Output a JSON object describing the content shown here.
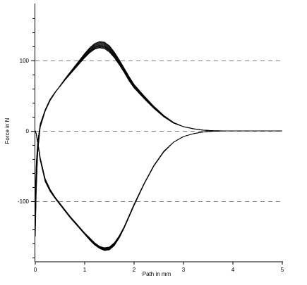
{
  "chart_data": {
    "type": "line",
    "title": "",
    "xlabel": "Path in mm",
    "ylabel": "Force in N",
    "xlim": [
      0,
      5
    ],
    "ylim": [
      -195,
      170
    ],
    "x_ticks": [
      0,
      1,
      2,
      3,
      4,
      5
    ],
    "x_tick_labels": [
      "0",
      "1",
      "2",
      "3",
      "4",
      "5"
    ],
    "y_ticks": [
      100,
      0,
      -100
    ],
    "y_tick_labels": [
      "100",
      "0",
      "-100"
    ],
    "reference_lines_y": [
      100,
      0,
      -100
    ],
    "reference_line_style": "dashed",
    "grid": false,
    "legend": "none",
    "line_color": "#000000",
    "series_count": 20,
    "series": [
      {
        "x": [
          0,
          0.02,
          0.05,
          0.1,
          0.2,
          0.3,
          0.4,
          0.5,
          0.6,
          0.7,
          0.8,
          0.9,
          1.0,
          1.1,
          1.2,
          1.3,
          1.4,
          1.5,
          1.6,
          1.7,
          1.8,
          1.9,
          2.0,
          2.2,
          2.4,
          2.6,
          2.8,
          3.0,
          3.2,
          3.4,
          3.6,
          3.8,
          4.0,
          5.0
        ],
        "y": [
          -90,
          -45,
          -15,
          10,
          30,
          45,
          55,
          63,
          72,
          80,
          88,
          96,
          104,
          111,
          116,
          118,
          117,
          112,
          104,
          94,
          83,
          71,
          61,
          46,
          32,
          20,
          11,
          6,
          3,
          1,
          0.3,
          0.1,
          0,
          0
        ]
      },
      {
        "x": [
          0,
          0.02,
          0.05,
          0.1,
          0.2,
          0.3,
          0.4,
          0.5,
          0.6,
          0.7,
          0.8,
          0.9,
          1.0,
          1.1,
          1.2,
          1.3,
          1.4,
          1.5,
          1.6,
          1.7,
          1.8,
          1.9,
          2.0,
          2.2,
          2.4,
          2.6,
          2.8,
          3.0,
          3.2,
          3.4,
          3.6,
          3.8,
          4.0,
          5.0
        ],
        "y": [
          -150,
          -85,
          -30,
          5,
          28,
          43,
          54,
          64,
          74,
          83,
          92,
          101,
          110,
          118,
          124,
          127,
          126,
          121,
          112,
          101,
          89,
          77,
          66,
          50,
          35,
          22,
          12,
          6,
          3,
          1,
          0.3,
          0.1,
          0,
          0
        ]
      },
      {
        "x": [
          0,
          0.02,
          0.05,
          0.1,
          0.2,
          0.3,
          0.4,
          0.5,
          0.6,
          0.7,
          0.8,
          0.9,
          1.0,
          1.1,
          1.2,
          1.3,
          1.4,
          1.5,
          1.6,
          1.7,
          1.8,
          1.9,
          2.0,
          2.2,
          2.4,
          2.6,
          2.8,
          3.0,
          3.2,
          3.4,
          3.6,
          3.8,
          4.0,
          5.0
        ],
        "y": [
          -120,
          -60,
          -20,
          8,
          29,
          44,
          55,
          64,
          73,
          82,
          90,
          98,
          106,
          113,
          118,
          121,
          120,
          115,
          106,
          96,
          85,
          73,
          63,
          47,
          33,
          21,
          11,
          6,
          3,
          1,
          0.3,
          0.1,
          0,
          0
        ]
      },
      {
        "x": [
          0,
          0.02,
          0.05,
          0.1,
          0.2,
          0.3,
          0.4,
          0.5,
          0.6,
          0.7,
          0.8,
          0.9,
          1.0,
          1.1,
          1.2,
          1.3,
          1.4,
          1.5,
          1.6,
          1.7,
          1.8,
          1.9,
          2.0,
          2.2,
          2.4,
          2.6,
          2.8,
          3.0,
          3.2,
          3.4,
          3.6,
          3.8,
          4.0,
          5.0
        ],
        "y": [
          0,
          -5,
          -18,
          -42,
          -72,
          -86,
          -96,
          -105,
          -114,
          -123,
          -131,
          -139,
          -147,
          -155,
          -162,
          -167,
          -170,
          -169,
          -163,
          -152,
          -138,
          -122,
          -106,
          -76,
          -50,
          -30,
          -16,
          -8,
          -4,
          -1.5,
          -0.5,
          -0.1,
          0,
          0
        ]
      },
      {
        "x": [
          0,
          0.02,
          0.05,
          0.1,
          0.2,
          0.3,
          0.4,
          0.5,
          0.6,
          0.7,
          0.8,
          0.9,
          1.0,
          1.1,
          1.2,
          1.3,
          1.4,
          1.5,
          1.6,
          1.7,
          1.8,
          1.9,
          2.0,
          2.2,
          2.4,
          2.6,
          2.8,
          3.0,
          3.2,
          3.4,
          3.6,
          3.8,
          4.0,
          5.0
        ],
        "y": [
          0,
          -4,
          -15,
          -38,
          -68,
          -83,
          -94,
          -103,
          -112,
          -121,
          -129,
          -137,
          -145,
          -152,
          -159,
          -164,
          -166,
          -165,
          -159,
          -149,
          -136,
          -120,
          -104,
          -75,
          -49,
          -29,
          -16,
          -8,
          -4,
          -1.5,
          -0.5,
          -0.1,
          0,
          0
        ]
      }
    ]
  }
}
